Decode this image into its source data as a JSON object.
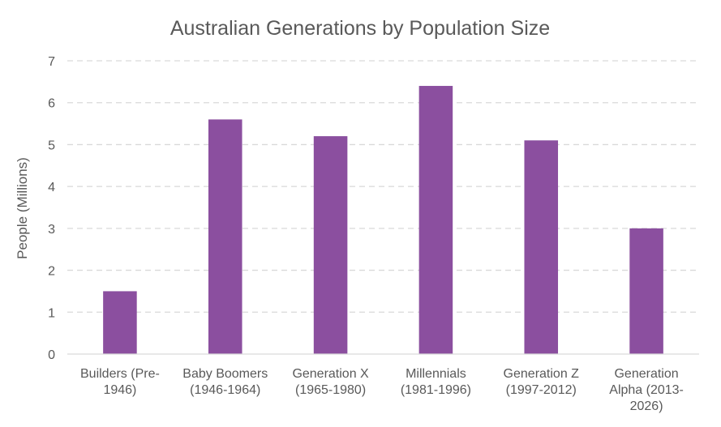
{
  "chart_data": {
    "type": "bar",
    "title": "Australian Generations by Population Size",
    "ylabel": "People (Millions)",
    "xlabel": "",
    "categories": [
      [
        "Builders (Pre-",
        "1946)"
      ],
      [
        "Baby Boomers",
        "(1946-1964)"
      ],
      [
        "Generation X",
        "(1965-1980)"
      ],
      [
        "Millennials",
        "(1981-1996)"
      ],
      [
        "Generation Z",
        "(1997-2012)"
      ],
      [
        "Generation",
        "Alpha (2013-",
        "2026)"
      ]
    ],
    "values": [
      1.5,
      5.6,
      5.2,
      6.4,
      5.1,
      3.0
    ],
    "ylim": [
      0,
      7
    ],
    "yticks": [
      "0",
      "1",
      "2",
      "3",
      "4",
      "5",
      "6",
      "7"
    ],
    "grid": true,
    "bar_color": "#8b4f9f",
    "legend": "none"
  }
}
